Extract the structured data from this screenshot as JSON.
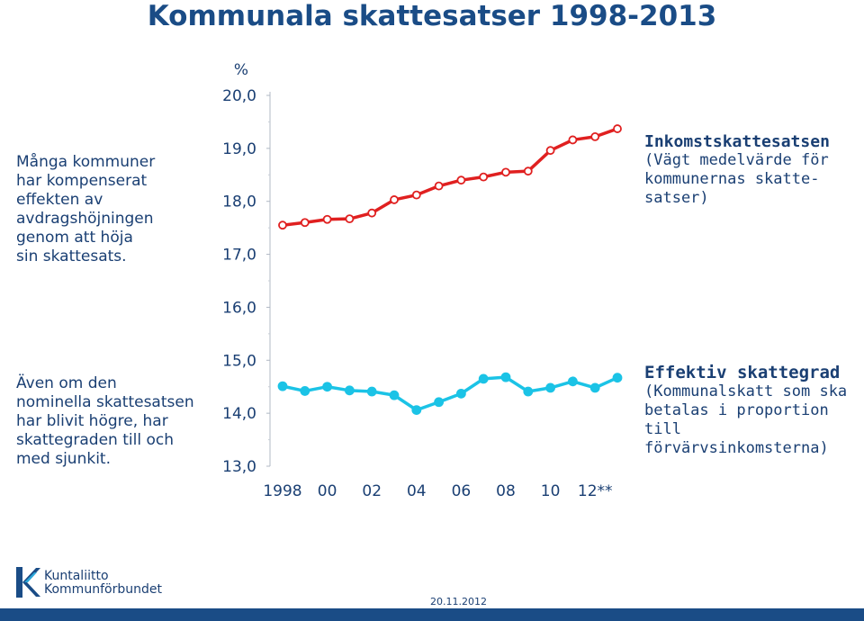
{
  "title": "Kommunala skattesatser 1998-2013",
  "notes": {
    "top_left": "Många kommuner\nhar kompenserat\neffekten av\navdragshöjningen\ngenom att höja\nsin skattesats.",
    "bottom_left": "Även om den\nnominella skattesatsen\nhar blivit högre, har\nskattegraden till och\nmed sjunkit."
  },
  "legend": {
    "top_head": "Inkomstskattesatsen",
    "top_desc": "(Vägt medelvärde för\nkommunernas skatte-\nsatser)",
    "bottom_head": "Effektiv skattegrad",
    "bottom_desc": "(Kommunalskatt som ska\nbetalas i proportion till\nförvärvsinkomsterna)"
  },
  "logo": {
    "line1": "Kuntaliitto",
    "line2": "Kommunförbundet"
  },
  "date": "20.11.2012",
  "colors": {
    "red": "#e02020",
    "cyan": "#1bc3e6",
    "text": "#1a3f73",
    "title": "#1a4c86"
  },
  "chart_data": {
    "type": "line",
    "ylabel": "%",
    "ylim": [
      13,
      20
    ],
    "yticks": [
      "20,0",
      "19,0",
      "18,0",
      "17,0",
      "16,0",
      "15,0",
      "14,0",
      "13,0"
    ],
    "x_tick_labels": [
      "1998",
      "00",
      "02",
      "04",
      "06",
      "08",
      "10",
      "12**"
    ],
    "x": [
      1998,
      1999,
      2000,
      2001,
      2002,
      2003,
      2004,
      2005,
      2006,
      2007,
      2008,
      2009,
      2010,
      2011,
      2012,
      2013
    ],
    "series": [
      {
        "name": "Inkomstskattesatsen",
        "color": "#e02020",
        "values": [
          17.55,
          17.6,
          17.66,
          17.67,
          17.78,
          18.03,
          18.12,
          18.29,
          18.4,
          18.46,
          18.55,
          18.57,
          18.96,
          19.16,
          19.22,
          19.37
        ]
      },
      {
        "name": "Effektiv skattegrad",
        "color": "#1bc3e6",
        "values": [
          14.51,
          14.42,
          14.5,
          14.43,
          14.41,
          14.34,
          14.06,
          14.21,
          14.37,
          14.65,
          14.68,
          14.41,
          14.48,
          14.6,
          14.48,
          14.67
        ]
      }
    ]
  }
}
